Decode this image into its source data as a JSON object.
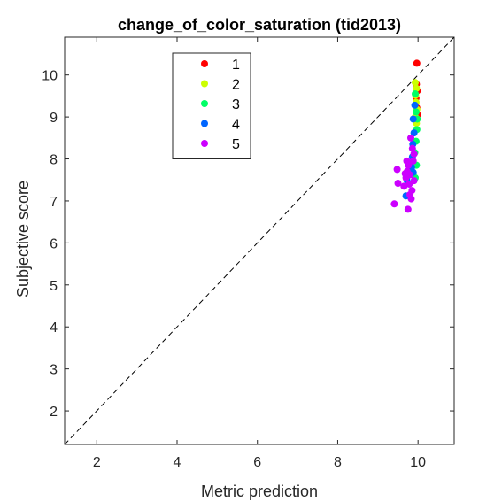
{
  "chart_data": {
    "type": "scatter",
    "title": "change_of_color_saturation (tid2013)",
    "xlabel": "Metric prediction",
    "ylabel": "Subjective score",
    "xlim": [
      1.2,
      10.9
    ],
    "ylim": [
      1.2,
      10.9
    ],
    "xticks": [
      2,
      4,
      6,
      8,
      10
    ],
    "yticks": [
      2,
      3,
      4,
      5,
      6,
      7,
      8,
      9,
      10
    ],
    "grid": false,
    "legend_position": "top-left",
    "reference_line": "y = x (dashed)",
    "series": [
      {
        "name": "1",
        "color": "#ff0000",
        "points": [
          [
            9.97,
            10.28
          ],
          [
            9.96,
            9.78
          ],
          [
            9.98,
            9.62
          ],
          [
            9.95,
            9.45
          ],
          [
            9.97,
            9.22
          ],
          [
            9.99,
            9.05
          ],
          [
            9.96,
            8.92
          ]
        ]
      },
      {
        "name": "2",
        "color": "#ccff00",
        "points": [
          [
            9.93,
            9.82
          ],
          [
            9.96,
            9.68
          ],
          [
            9.94,
            9.52
          ],
          [
            9.95,
            9.35
          ],
          [
            9.97,
            9.18
          ],
          [
            9.93,
            9.0
          ],
          [
            9.96,
            8.85
          ]
        ]
      },
      {
        "name": "3",
        "color": "#00ff66",
        "points": [
          [
            9.93,
            9.55
          ],
          [
            9.95,
            9.12
          ],
          [
            9.98,
            8.95
          ],
          [
            9.97,
            8.7
          ],
          [
            9.95,
            8.42
          ],
          [
            9.92,
            8.15
          ],
          [
            9.96,
            7.85
          ],
          [
            9.93,
            7.55
          ]
        ]
      },
      {
        "name": "4",
        "color": "#0066ff",
        "points": [
          [
            9.92,
            9.28
          ],
          [
            9.88,
            8.95
          ],
          [
            9.9,
            8.62
          ],
          [
            9.87,
            8.35
          ],
          [
            9.86,
            8.05
          ],
          [
            9.84,
            7.8
          ],
          [
            9.78,
            7.9
          ],
          [
            9.72,
            7.5
          ],
          [
            9.7,
            7.12
          ],
          [
            9.88,
            7.68
          ]
        ]
      },
      {
        "name": "5",
        "color": "#cc00ff",
        "points": [
          [
            9.41,
            6.93
          ],
          [
            9.75,
            6.8
          ],
          [
            9.5,
            7.42
          ],
          [
            9.48,
            7.75
          ],
          [
            9.65,
            7.35
          ],
          [
            9.7,
            7.55
          ],
          [
            9.73,
            7.7
          ],
          [
            9.76,
            7.85
          ],
          [
            9.8,
            7.62
          ],
          [
            9.78,
            7.4
          ],
          [
            9.85,
            7.25
          ],
          [
            9.83,
            7.05
          ],
          [
            9.88,
            7.95
          ],
          [
            9.9,
            8.12
          ],
          [
            9.86,
            8.25
          ],
          [
            9.82,
            8.5
          ],
          [
            9.68,
            7.65
          ],
          [
            9.72,
            7.95
          ],
          [
            9.8,
            7.15
          ],
          [
            9.9,
            7.48
          ]
        ]
      }
    ]
  }
}
